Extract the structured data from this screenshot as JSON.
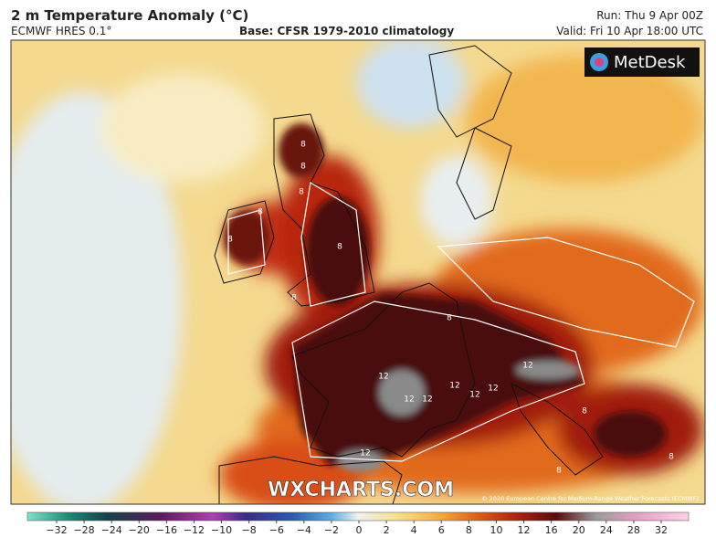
{
  "header": {
    "title": "2 m Temperature Anomaly (°C)",
    "model": "ECMWF HRES 0.1°",
    "base": "Base: CFSR 1979-2010 climatology",
    "run": "Run: Thu 9 Apr 00Z",
    "valid": "Valid: Fri 10 Apr 18:00 UTC"
  },
  "map": {
    "logo": "MetDesk",
    "watermark": "WXCHARTS.COM",
    "copyright": "© 2020 European Centre for Medium-Range Weather Forecasts (ECMWF)",
    "contour_labels": [
      "8",
      "8",
      "8",
      "8",
      "8",
      "8",
      "8",
      "8",
      "12",
      "12",
      "12",
      "12",
      "12",
      "12",
      "12",
      "12",
      "8",
      "8",
      "8"
    ]
  },
  "colorbar": {
    "ticks": [
      "−32",
      "−28",
      "−24",
      "−20",
      "−16",
      "−12",
      "−10",
      "−8",
      "−6",
      "−4",
      "−2",
      "0",
      "2",
      "4",
      "6",
      "8",
      "10",
      "12",
      "16",
      "20",
      "24",
      "28",
      "32"
    ]
  }
}
